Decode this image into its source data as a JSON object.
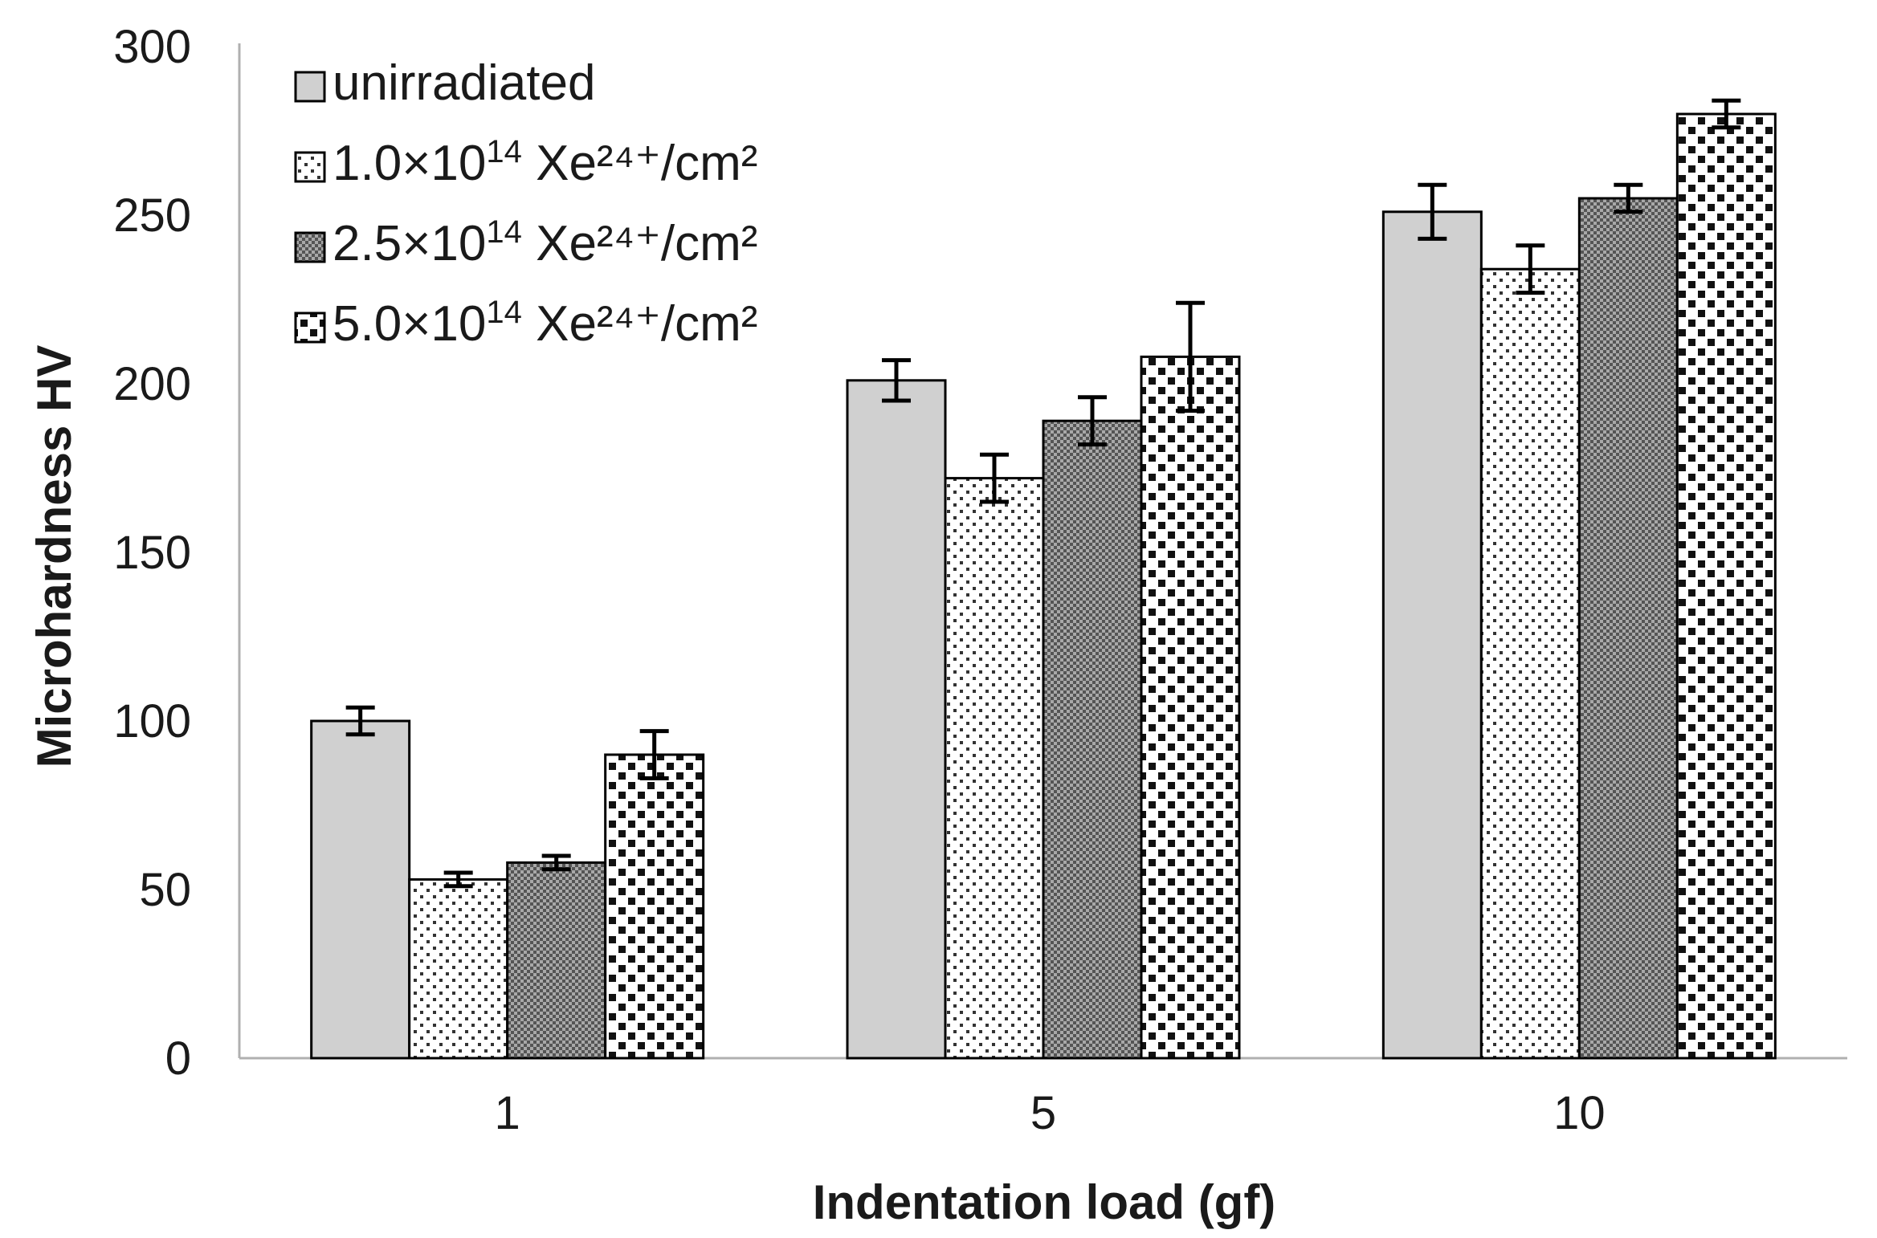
{
  "chart_data": {
    "type": "bar",
    "title": "",
    "xlabel": "Indentation load (gf)",
    "ylabel": "Microhardness HV",
    "ylim": [
      0,
      300
    ],
    "yticks": [
      0,
      50,
      100,
      150,
      200,
      250,
      300
    ],
    "categories": [
      "1",
      "5",
      "10"
    ],
    "legend_position": "top-left",
    "series": [
      {
        "name": "unirradiated",
        "label_main": "unirradiated",
        "label_sup": "",
        "label_tail": "",
        "pattern": "solid-gray",
        "values": [
          100,
          201,
          251
        ],
        "errors": [
          4,
          6,
          8
        ]
      },
      {
        "name": "1.0×10¹⁴ Xe²⁴⁺/cm²",
        "label_main": "1.0×10",
        "label_sup": "14",
        "label_tail": " Xe²⁴⁺/cm²",
        "pattern": "sparse-dots",
        "values": [
          53,
          172,
          234
        ],
        "errors": [
          2,
          7,
          7
        ]
      },
      {
        "name": "2.5×10¹⁴ Xe²⁴⁺/cm²",
        "label_main": "2.5×10",
        "label_sup": "14",
        "label_tail": " Xe²⁴⁺/cm²",
        "pattern": "dense-check",
        "values": [
          58,
          189,
          255
        ],
        "errors": [
          2,
          7,
          4
        ]
      },
      {
        "name": "5.0×10¹⁴ Xe²⁴⁺/cm²",
        "label_main": "5.0×10",
        "label_sup": "14",
        "label_tail": " Xe²⁴⁺/cm²",
        "pattern": "dark-squares",
        "values": [
          90,
          208,
          280
        ],
        "errors": [
          7,
          16,
          4
        ]
      }
    ],
    "colors": {
      "axis": "#b0b0b0",
      "bar_edge": "#000000",
      "solid_fill": "#d0d0d0",
      "error_bar": "#000000",
      "text": "#1a1a1a"
    }
  }
}
